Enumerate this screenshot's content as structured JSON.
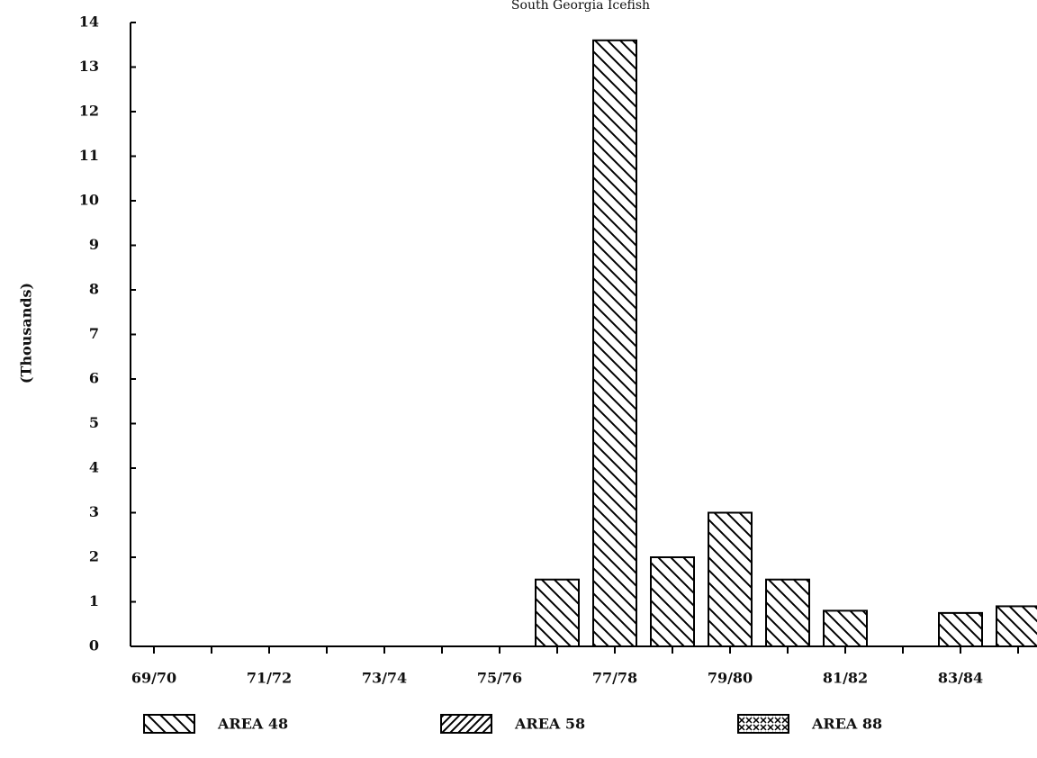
{
  "chart_data": {
    "type": "bar",
    "title": "South Georgia Icefish",
    "y_label": "(Thousands)",
    "categories": [
      "69/70",
      null,
      "71/72",
      null,
      "73/74",
      null,
      "75/76",
      null,
      "77/78",
      null,
      "79/80",
      null,
      "81/82",
      null,
      "83/84",
      null
    ],
    "series": [
      {
        "name": "AREA 48",
        "color": "#000000",
        "pattern": "backslash",
        "values": [
          null,
          null,
          null,
          null,
          null,
          null,
          null,
          1.5,
          13.6,
          2.0,
          3.0,
          1.5,
          0.8,
          null,
          0.75,
          0.9
        ]
      },
      {
        "name": "AREA 58",
        "color": "#000000",
        "pattern": "slash",
        "values": [
          null,
          null,
          null,
          null,
          null,
          null,
          null,
          null,
          null,
          null,
          null,
          null,
          null,
          null,
          null,
          null
        ]
      },
      {
        "name": "AREA 88",
        "color": "#000000",
        "pattern": "cross",
        "values": [
          null,
          null,
          null,
          null,
          null,
          null,
          null,
          null,
          null,
          null,
          null,
          null,
          null,
          null,
          null,
          null
        ]
      }
    ],
    "ylim": [
      0,
      14
    ],
    "yticks": [
      0,
      1,
      2,
      3,
      4,
      5,
      6,
      7,
      8,
      9,
      10,
      11,
      12,
      13,
      14
    ]
  }
}
